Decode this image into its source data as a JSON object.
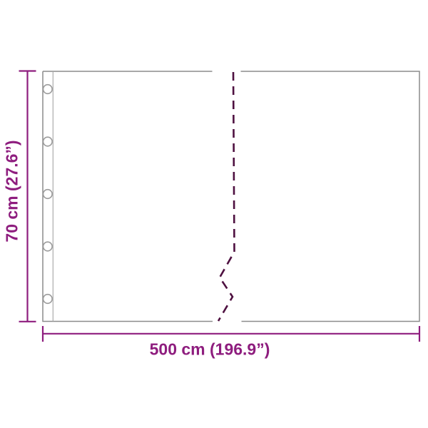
{
  "diagram": {
    "type": "product-dimension-drawing",
    "width_label": "500 cm (196.9”)",
    "height_label": "70 cm (27.6”)",
    "grommet_count": 5,
    "colors": {
      "dimension": "#8E1D7E",
      "break_line": "#4E1040",
      "panel_outline": "#8C8C8C",
      "strip_line": "#ABABAB",
      "grommet_outline": "#9B9B9B"
    }
  }
}
